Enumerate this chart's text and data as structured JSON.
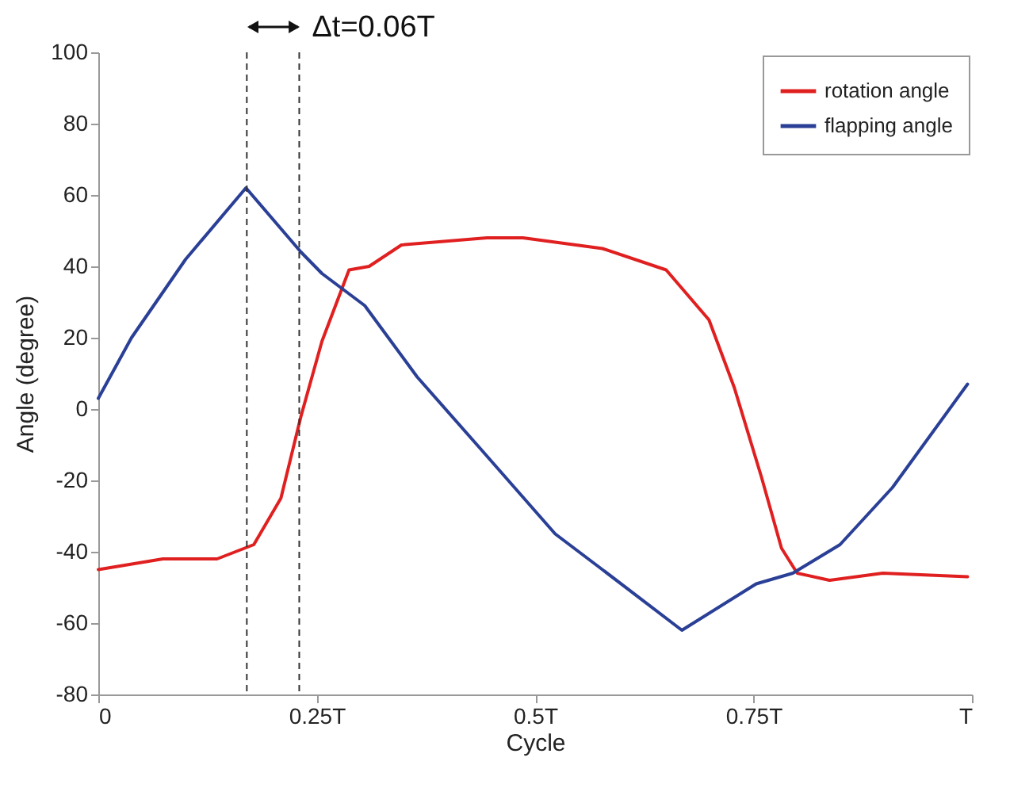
{
  "chart_data": {
    "type": "line",
    "xlabel": "Cycle",
    "ylabel": "Angle (degree)",
    "xlim": [
      0,
      1
    ],
    "ylim": [
      -80,
      100
    ],
    "xticks": [
      {
        "value": 0,
        "label": "0"
      },
      {
        "value": 0.25,
        "label": "0.25T"
      },
      {
        "value": 0.5,
        "label": "0.5T"
      },
      {
        "value": 0.75,
        "label": "0.75T"
      },
      {
        "value": 1,
        "label": "T"
      }
    ],
    "yticks": [
      -80,
      -60,
      -40,
      -20,
      0,
      20,
      40,
      60,
      80,
      100
    ],
    "grid": false,
    "legend": "top right",
    "marker": "none",
    "line_style": "solid",
    "annotations": [
      "Δt=0.06T"
    ],
    "ref_lines": [
      {
        "axis": "x",
        "value": 0.17,
        "label": null,
        "line_style": "dashed",
        "color": "#333333"
      },
      {
        "axis": "x",
        "value": 0.23,
        "label": null,
        "line_style": "dashed",
        "color": "#333333"
      }
    ],
    "series": [
      {
        "name": "rotation angle",
        "color": "#e02020",
        "x": [
          0,
          0.074,
          0.136,
          0.178,
          0.209,
          0.232,
          0.256,
          0.287,
          0.31,
          0.347,
          0.445,
          0.474,
          0.486,
          0.577,
          0.65,
          0.699,
          0.728,
          0.759,
          0.782,
          0.8,
          0.837,
          0.898,
          0.995
        ],
        "values": [
          -45,
          -42,
          -42,
          -38,
          -25,
          -2,
          19,
          39,
          40,
          46,
          48,
          48,
          48,
          45,
          39,
          25,
          6,
          -19,
          -39,
          -46,
          -48,
          -46,
          -47
        ]
      },
      {
        "name": "flapping angle",
        "color": "#2a3f96",
        "x": [
          0,
          0.038,
          0.1,
          0.169,
          0.232,
          0.256,
          0.305,
          0.365,
          0.437,
          0.523,
          0.577,
          0.668,
          0.753,
          0.795,
          0.849,
          0.909,
          0.995
        ],
        "values": [
          3,
          20,
          42,
          62,
          44,
          38,
          29,
          9,
          -11,
          -35,
          -45,
          -62,
          -49,
          -46,
          -38,
          -22,
          7
        ]
      }
    ]
  }
}
